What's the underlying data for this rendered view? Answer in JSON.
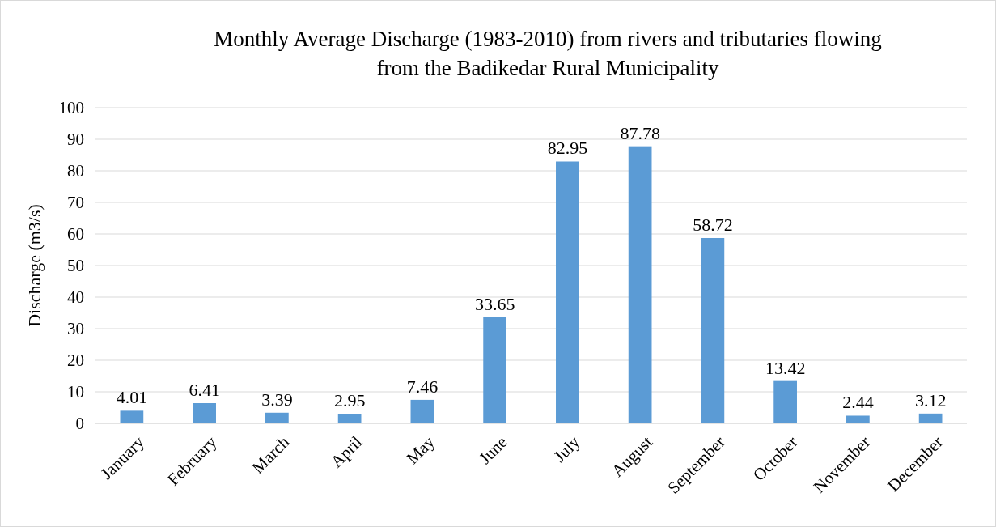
{
  "chart_data": {
    "type": "bar",
    "title": "Monthly Average Discharge (1983-2010) from rivers and tributaries flowing from the Badikedar Rural Municipality",
    "ylabel": "Discharge (m3/s)",
    "categories": [
      "January",
      "February",
      "March",
      "April",
      "May",
      "June",
      "July",
      "August",
      "September",
      "October",
      "November",
      "December"
    ],
    "values": [
      4.01,
      6.41,
      3.39,
      2.95,
      7.46,
      33.65,
      82.95,
      87.78,
      58.72,
      13.42,
      2.44,
      3.12
    ],
    "color": "#5b9bd5",
    "ylim": [
      0,
      100
    ],
    "yticks": [
      0,
      10,
      20,
      30,
      40,
      50,
      60,
      70,
      80,
      90,
      100
    ],
    "grid": "y",
    "data_labels": true
  }
}
